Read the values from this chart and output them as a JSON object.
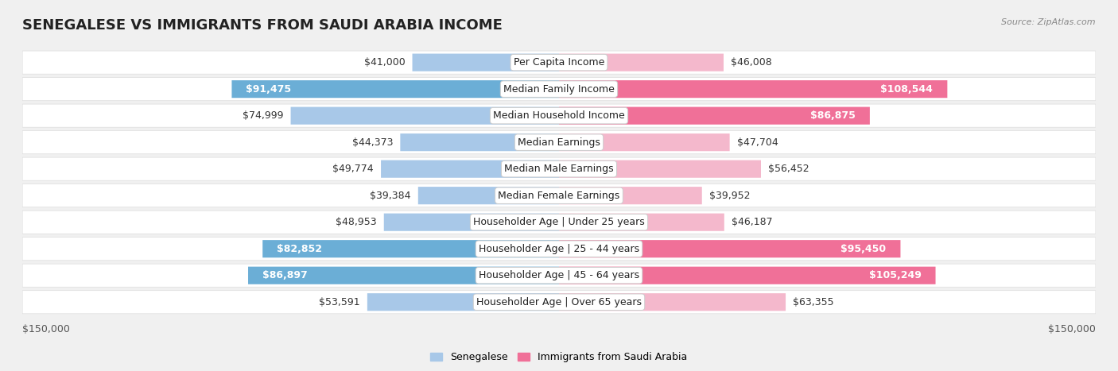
{
  "title": "SENEGALESE VS IMMIGRANTS FROM SAUDI ARABIA INCOME",
  "source": "Source: ZipAtlas.com",
  "categories": [
    "Per Capita Income",
    "Median Family Income",
    "Median Household Income",
    "Median Earnings",
    "Median Male Earnings",
    "Median Female Earnings",
    "Householder Age | Under 25 years",
    "Householder Age | 25 - 44 years",
    "Householder Age | 45 - 64 years",
    "Householder Age | Over 65 years"
  ],
  "senegalese": [
    41000,
    91475,
    74999,
    44373,
    49774,
    39384,
    48953,
    82852,
    86897,
    53591
  ],
  "immigrants": [
    46008,
    108544,
    86875,
    47704,
    56452,
    39952,
    46187,
    95450,
    105249,
    63355
  ],
  "senegalese_labels": [
    "$41,000",
    "$91,475",
    "$74,999",
    "$44,373",
    "$49,774",
    "$39,384",
    "$48,953",
    "$82,852",
    "$86,897",
    "$53,591"
  ],
  "immigrants_labels": [
    "$46,008",
    "$108,544",
    "$86,875",
    "$47,704",
    "$56,452",
    "$39,952",
    "$46,187",
    "$95,450",
    "$105,249",
    "$63,355"
  ],
  "color_senegalese_light": "#A8C8E8",
  "color_senegalese_dark": "#6BAED6",
  "color_immigrants_light": "#F4B8CC",
  "color_immigrants_dark": "#F07098",
  "highlight_sen_indices": [
    1,
    7,
    8
  ],
  "highlight_imm_indices": [
    1,
    2,
    7,
    8
  ],
  "label_inside_sen": [
    1,
    7,
    8
  ],
  "label_inside_imm": [
    1,
    2,
    7,
    8
  ],
  "max_val": 150000,
  "background_color": "#f0f0f0",
  "row_bg": "#ffffff",
  "row_bg_alt": "#f8f8f8",
  "title_fontsize": 13,
  "label_fontsize": 9,
  "category_fontsize": 9,
  "source_fontsize": 8
}
